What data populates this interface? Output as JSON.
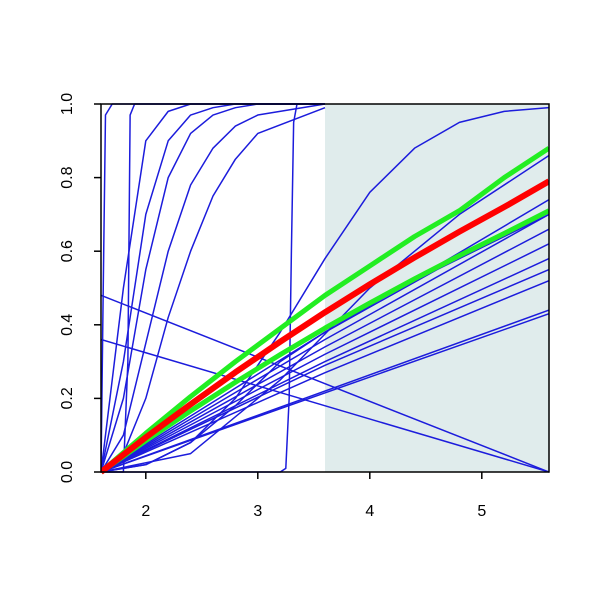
{
  "chart_data": {
    "type": "line",
    "xlim": [
      1.6,
      5.6
    ],
    "xticks": [
      2,
      3,
      4,
      5
    ],
    "ylim": [
      0,
      1
    ],
    "yticks": [
      {
        "value": 0,
        "label": "0.0"
      },
      0.2,
      0.4,
      0.6,
      0.8,
      {
        "value": 1,
        "label": "1.0"
      }
    ],
    "shaded_region": {
      "x": [
        3.6,
        5.6
      ],
      "color": "#e0ecec"
    },
    "series": [
      {
        "color": "#1c1cdc",
        "line_width": 1.5,
        "x": [
          1.6,
          5.6
        ],
        "values": [
          0.48,
          0
        ]
      },
      {
        "color": "#1c1cdc",
        "line_width": 1.5,
        "x": [
          1.6,
          5.6
        ],
        "values": [
          0.36,
          0
        ]
      },
      {
        "color": "#1c1cdc",
        "line_width": 1.5,
        "x": [
          1.6,
          5.6
        ],
        "values": [
          0,
          0.44
        ]
      },
      {
        "color": "#1c1cdc",
        "line_width": 1.5,
        "x": [
          1.6,
          5.6
        ],
        "values": [
          0,
          0.43
        ]
      },
      {
        "color": "#1c1cdc",
        "line_width": 1.5,
        "x": [
          1.6,
          3.6,
          5.6
        ],
        "values": [
          0,
          0.27,
          0.52
        ]
      },
      {
        "color": "#1c1cdc",
        "line_width": 1.5,
        "x": [
          1.6,
          3.6,
          5.6
        ],
        "values": [
          0,
          0.29,
          0.55
        ]
      },
      {
        "color": "#1c1cdc",
        "line_width": 1.5,
        "x": [
          1.6,
          3.6,
          5.6
        ],
        "values": [
          0,
          0.3,
          0.58
        ]
      },
      {
        "color": "#1c1cdc",
        "line_width": 1.5,
        "x": [
          1.6,
          3.6,
          5.6
        ],
        "values": [
          0,
          0.32,
          0.62
        ]
      },
      {
        "color": "#1c1cdc",
        "line_width": 1.5,
        "x": [
          1.6,
          3.6,
          5.6
        ],
        "values": [
          0,
          0.34,
          0.66
        ]
      },
      {
        "color": "#1c1cdc",
        "line_width": 1.5,
        "x": [
          1.6,
          3.6,
          5.6
        ],
        "values": [
          0,
          0.36,
          0.7
        ]
      },
      {
        "color": "#1c1cdc",
        "line_width": 1.5,
        "x": [
          1.6,
          3.6,
          5.6
        ],
        "values": [
          0,
          0.38,
          0.74
        ]
      },
      {
        "color": "#1c1cdc",
        "line_width": 1.5,
        "x": [
          1.6,
          2.0,
          2.4,
          2.8,
          3.2,
          3.6,
          4.6,
          5.6
        ],
        "values": [
          0,
          0.02,
          0.08,
          0.18,
          0.3,
          0.38,
          0.55,
          0.7
        ]
      },
      {
        "color": "#1c1cdc",
        "line_width": 1.5,
        "x": [
          1.6,
          2.0,
          2.4,
          2.8,
          3.2,
          3.6,
          4.0,
          4.4,
          4.8,
          5.2,
          5.6
        ],
        "values": [
          0,
          0.02,
          0.08,
          0.2,
          0.38,
          0.58,
          0.76,
          0.88,
          0.95,
          0.98,
          0.99
        ]
      },
      {
        "color": "#1c1cdc",
        "line_width": 1.5,
        "x": [
          1.6,
          2.4,
          3.2,
          4.0,
          4.8,
          5.6
        ],
        "values": [
          0,
          0.05,
          0.25,
          0.5,
          0.7,
          0.86
        ]
      },
      {
        "color": "#1c1cdc",
        "line_width": 1.5,
        "x": [
          1.6,
          3.2,
          3.25,
          3.28,
          3.3,
          3.32,
          3.35,
          3.6
        ],
        "values": [
          0,
          0,
          0.01,
          0.2,
          0.6,
          0.95,
          1,
          1
        ]
      },
      {
        "color": "#1c1cdc",
        "line_width": 1.5,
        "x": [
          1.6,
          1.62,
          1.64,
          1.7,
          3.6
        ],
        "values": [
          0,
          0.5,
          0.97,
          1,
          1
        ]
      },
      {
        "color": "#1c1cdc",
        "line_width": 1.5,
        "x": [
          1.6,
          1.7,
          1.8,
          1.84,
          1.86,
          1.9,
          3.6
        ],
        "values": [
          0,
          0,
          0,
          0.3,
          0.97,
          1,
          1
        ]
      },
      {
        "color": "#1c1cdc",
        "line_width": 1.5,
        "x": [
          1.6,
          1.8,
          2.0,
          2.2,
          2.4,
          2.6,
          2.8,
          3.0,
          3.6
        ],
        "values": [
          0,
          0.5,
          0.9,
          0.98,
          1,
          1,
          1,
          1,
          1
        ]
      },
      {
        "color": "#1c1cdc",
        "line_width": 1.5,
        "x": [
          1.6,
          1.8,
          2.0,
          2.2,
          2.4,
          2.6,
          2.8,
          3.0,
          3.6
        ],
        "values": [
          0,
          0.3,
          0.7,
          0.9,
          0.97,
          0.99,
          1,
          1,
          1
        ]
      },
      {
        "color": "#1c1cdc",
        "line_width": 1.5,
        "x": [
          1.6,
          1.8,
          2.0,
          2.2,
          2.4,
          2.6,
          2.8,
          3.0,
          3.6
        ],
        "values": [
          0,
          0.2,
          0.55,
          0.8,
          0.92,
          0.97,
          0.99,
          1,
          1
        ]
      },
      {
        "color": "#1c1cdc",
        "line_width": 1.5,
        "x": [
          1.6,
          1.8,
          2.0,
          2.2,
          2.4,
          2.6,
          2.8,
          3.0,
          3.6
        ],
        "values": [
          0,
          0.1,
          0.35,
          0.6,
          0.78,
          0.88,
          0.94,
          0.97,
          1
        ]
      },
      {
        "color": "#1c1cdc",
        "line_width": 1.5,
        "x": [
          1.6,
          1.8,
          2.0,
          2.2,
          2.4,
          2.6,
          2.8,
          3.0,
          3.6
        ],
        "values": [
          0,
          0.05,
          0.2,
          0.42,
          0.6,
          0.75,
          0.85,
          0.92,
          0.99
        ]
      },
      {
        "color": "#22ee22",
        "line_width": 5,
        "x": [
          1.6,
          2.0,
          2.4,
          2.8,
          3.2,
          3.6,
          4.0,
          4.4,
          4.8,
          5.2,
          5.6
        ],
        "values": [
          0,
          0.105,
          0.205,
          0.3,
          0.39,
          0.48,
          0.56,
          0.64,
          0.71,
          0.8,
          0.88
        ]
      },
      {
        "color": "#22ee22",
        "line_width": 5,
        "x": [
          1.6,
          2.0,
          2.4,
          2.8,
          3.2,
          3.6,
          4.0,
          4.4,
          4.8,
          5.2,
          5.6
        ],
        "values": [
          0,
          0.085,
          0.166,
          0.244,
          0.319,
          0.391,
          0.459,
          0.525,
          0.588,
          0.648,
          0.71
        ]
      },
      {
        "color": "#ff0000",
        "line_width": 6,
        "x": [
          1.6,
          2.0,
          2.4,
          2.8,
          3.2,
          3.6,
          4.0,
          4.4,
          4.8,
          5.2,
          5.6
        ],
        "values": [
          0,
          0.094,
          0.184,
          0.271,
          0.354,
          0.434,
          0.51,
          0.583,
          0.653,
          0.72,
          0.79
        ]
      }
    ]
  }
}
